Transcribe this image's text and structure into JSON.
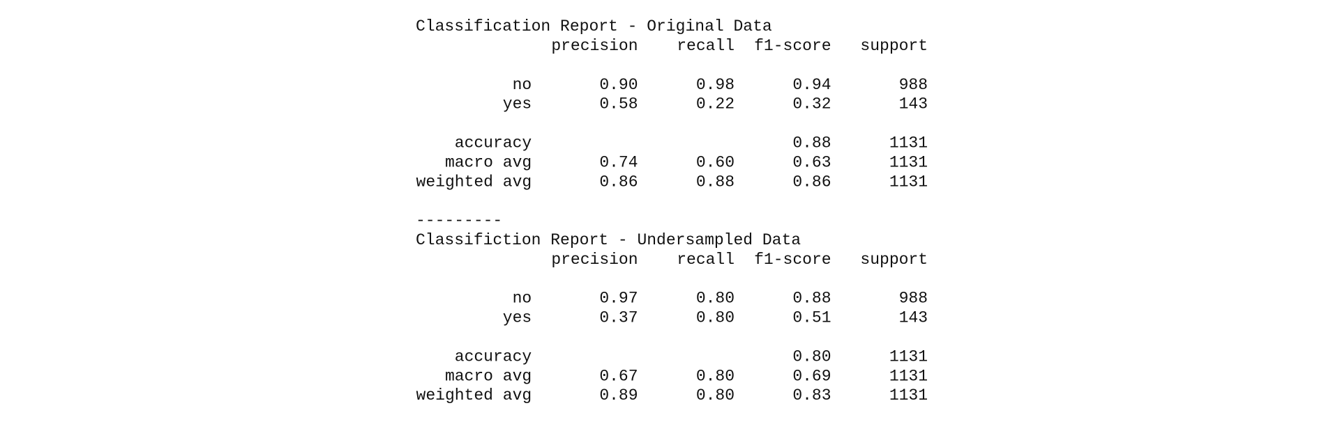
{
  "reports": [
    {
      "title": "Classification Report - Original Data",
      "columns": [
        "precision",
        "recall",
        "f1-score",
        "support"
      ],
      "rows": [
        {
          "label": "no",
          "values": [
            "0.90",
            "0.98",
            "0.94",
            "988"
          ]
        },
        {
          "label": "yes",
          "values": [
            "0.58",
            "0.22",
            "0.32",
            "143"
          ]
        },
        {
          "label": "accuracy",
          "values": [
            null,
            null,
            "0.88",
            "1131"
          ]
        },
        {
          "label": "macro avg",
          "values": [
            "0.74",
            "0.60",
            "0.63",
            "1131"
          ]
        },
        {
          "label": "weighted avg",
          "values": [
            "0.86",
            "0.88",
            "0.86",
            "1131"
          ]
        }
      ]
    },
    {
      "title": "Classifiction Report - Undersampled Data",
      "columns": [
        "precision",
        "recall",
        "f1-score",
        "support"
      ],
      "rows": [
        {
          "label": "no",
          "values": [
            "0.97",
            "0.80",
            "0.88",
            "988"
          ]
        },
        {
          "label": "yes",
          "values": [
            "0.37",
            "0.80",
            "0.51",
            "143"
          ]
        },
        {
          "label": "accuracy",
          "values": [
            null,
            null,
            "0.80",
            "1131"
          ]
        },
        {
          "label": "macro avg",
          "values": [
            "0.67",
            "0.80",
            "0.69",
            "1131"
          ]
        },
        {
          "label": "weighted avg",
          "values": [
            "0.89",
            "0.80",
            "0.83",
            "1131"
          ]
        }
      ]
    }
  ],
  "separator": "---------"
}
